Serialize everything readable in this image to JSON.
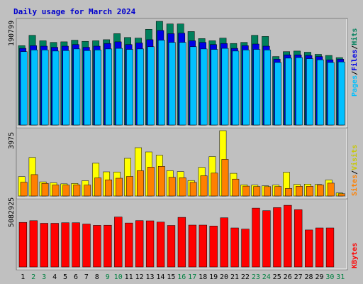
{
  "title": "Daily usage for March 2024",
  "colors": {
    "background": "#c0c0c0",
    "panel": "#c0c0c0",
    "title": "#0000cc",
    "hits": "#00805c",
    "files": "#0000e6",
    "pages": "#00c0ff",
    "visits": "#ffff00",
    "sites": "#ff8000",
    "kbytes": "#ff0000",
    "weekday_label": "#000000",
    "weekend_label": "#008040"
  },
  "chart_data": [
    {
      "type": "bar",
      "name": "hits-files-pages",
      "scale_label": "190799",
      "ylim": [
        0,
        190799
      ],
      "legend": [
        "Pages",
        "/",
        "Files",
        "/",
        "Hits"
      ],
      "series": [
        {
          "name": "Hits",
          "values": [
            146000,
            165000,
            155000,
            152000,
            153000,
            156000,
            154000,
            155000,
            157000,
            168000,
            161000,
            160000,
            176000,
            190799,
            186000,
            186000,
            172000,
            159000,
            155000,
            160000,
            150000,
            152000,
            165000,
            163000,
            126000,
            135000,
            136000,
            134000,
            130000,
            128000,
            124000
          ]
        },
        {
          "name": "Files",
          "values": [
            141000,
            146000,
            145000,
            143000,
            145000,
            148000,
            143000,
            145000,
            150000,
            153000,
            148000,
            151000,
            157000,
            174000,
            168000,
            169000,
            155000,
            152000,
            148000,
            150000,
            141000,
            146000,
            149000,
            145000,
            121000,
            129000,
            129000,
            128000,
            126000,
            120000,
            121000
          ]
        },
        {
          "name": "Pages",
          "values": [
            135000,
            138000,
            138000,
            136000,
            137000,
            140000,
            137000,
            138000,
            140000,
            141000,
            139000,
            140000,
            144000,
            156000,
            152000,
            152000,
            144000,
            140000,
            139000,
            141000,
            136000,
            138000,
            139000,
            138000,
            115000,
            123000,
            124000,
            122000,
            120000,
            115000,
            116000
          ]
        }
      ],
      "extra_tail": {
        "day": "31",
        "pages": 4000
      }
    },
    {
      "type": "bar",
      "name": "visits-sites",
      "scale_label": "3975",
      "ylim": [
        0,
        3975
      ],
      "legend": [
        "Sites",
        "/",
        "Visits"
      ],
      "series": [
        {
          "name": "Visits",
          "values": [
            1180,
            2340,
            860,
            800,
            740,
            760,
            930,
            1990,
            1470,
            1460,
            2290,
            2940,
            2680,
            2480,
            1540,
            1480,
            940,
            1740,
            2400,
            3975,
            1380,
            680,
            660,
            620,
            660,
            1440,
            700,
            720,
            700,
            970,
            180
          ]
        },
        {
          "name": "Sites",
          "values": [
            840,
            1300,
            770,
            670,
            660,
            680,
            660,
            1100,
            980,
            1080,
            1190,
            1540,
            1760,
            1800,
            1140,
            1110,
            830,
            1230,
            1390,
            2230,
            1030,
            600,
            580,
            570,
            580,
            460,
            590,
            590,
            670,
            780,
            140
          ]
        }
      ]
    },
    {
      "type": "bar",
      "name": "kbytes",
      "scale_label": "5082925",
      "ylim": [
        0,
        5082925
      ],
      "legend": [
        "KBytes"
      ],
      "series": [
        {
          "name": "KBytes",
          "values": [
            3470000,
            3600000,
            3400000,
            3400000,
            3440000,
            3440000,
            3340000,
            3240000,
            3250000,
            3890000,
            3420000,
            3610000,
            3590000,
            3490000,
            3230000,
            3860000,
            3260000,
            3260000,
            3190000,
            3830000,
            3040000,
            2950000,
            4580000,
            4380000,
            4620000,
            4800000,
            4460000,
            2880000,
            3040000,
            3040000,
            0
          ]
        }
      ]
    }
  ],
  "days": [
    "1",
    "2",
    "3",
    "4",
    "5",
    "6",
    "7",
    "8",
    "9",
    "10",
    "11",
    "12",
    "13",
    "14",
    "15",
    "16",
    "17",
    "18",
    "19",
    "20",
    "21",
    "22",
    "23",
    "24",
    "25",
    "26",
    "27",
    "28",
    "29",
    "30",
    "31"
  ],
  "weekend_days": [
    "2",
    "3",
    "9",
    "10",
    "16",
    "17",
    "23",
    "24",
    "30",
    "31"
  ]
}
